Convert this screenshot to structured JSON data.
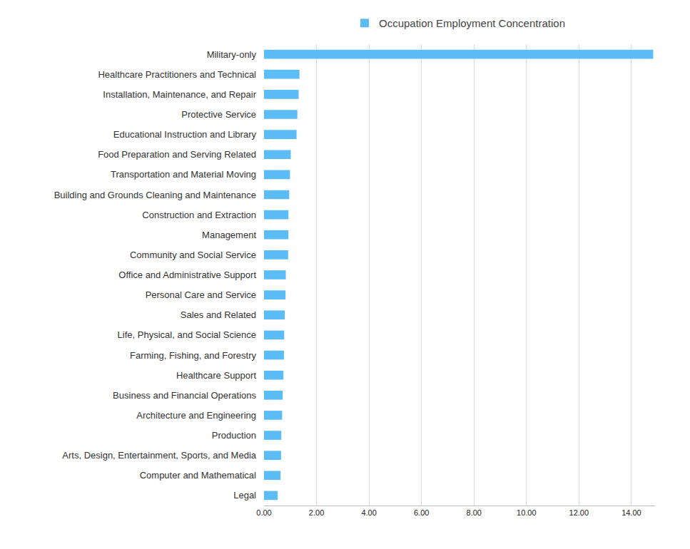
{
  "chart_data": {
    "type": "bar",
    "orientation": "horizontal",
    "categories": [
      "Military-only",
      "Healthcare Practitioners and Technical",
      "Installation, Maintenance, and Repair",
      "Protective Service",
      "Educational Instruction and Library",
      "Food Preparation and Serving Related",
      "Transportation and Material Moving",
      "Building and Grounds Cleaning and Maintenance",
      "Construction and Extraction",
      "Management",
      "Community and Social Service",
      "Office and Administrative Support",
      "Personal Care and Service",
      "Sales and Related",
      "Life, Physical, and Social Science",
      "Farming, Fishing, and Forestry",
      "Healthcare Support",
      "Business and Financial Operations",
      "Architecture and Engineering",
      "Production",
      "Arts, Design, Entertainment, Sports, and Media",
      "Computer and Mathematical",
      "Legal"
    ],
    "series": [
      {
        "name": "Occupation Employment Concentration",
        "color": "#5bbcf6",
        "values": [
          14.83,
          1.35,
          1.32,
          1.27,
          1.24,
          1.02,
          0.99,
          0.96,
          0.93,
          0.93,
          0.92,
          0.83,
          0.82,
          0.79,
          0.77,
          0.76,
          0.74,
          0.71,
          0.69,
          0.66,
          0.65,
          0.63,
          0.52
        ]
      }
    ],
    "xlim": [
      0,
      14.9
    ],
    "xticks": [
      {
        "value": 0,
        "label": "0.00"
      },
      {
        "value": 2,
        "label": "2.00"
      },
      {
        "value": 4,
        "label": "4.00"
      },
      {
        "value": 6,
        "label": "6.00"
      },
      {
        "value": 8,
        "label": "8.00"
      },
      {
        "value": 10,
        "label": "10.00"
      },
      {
        "value": 12,
        "label": "12.00"
      },
      {
        "value": 14,
        "label": "14.00"
      }
    ],
    "grid": true,
    "legend": "top"
  }
}
